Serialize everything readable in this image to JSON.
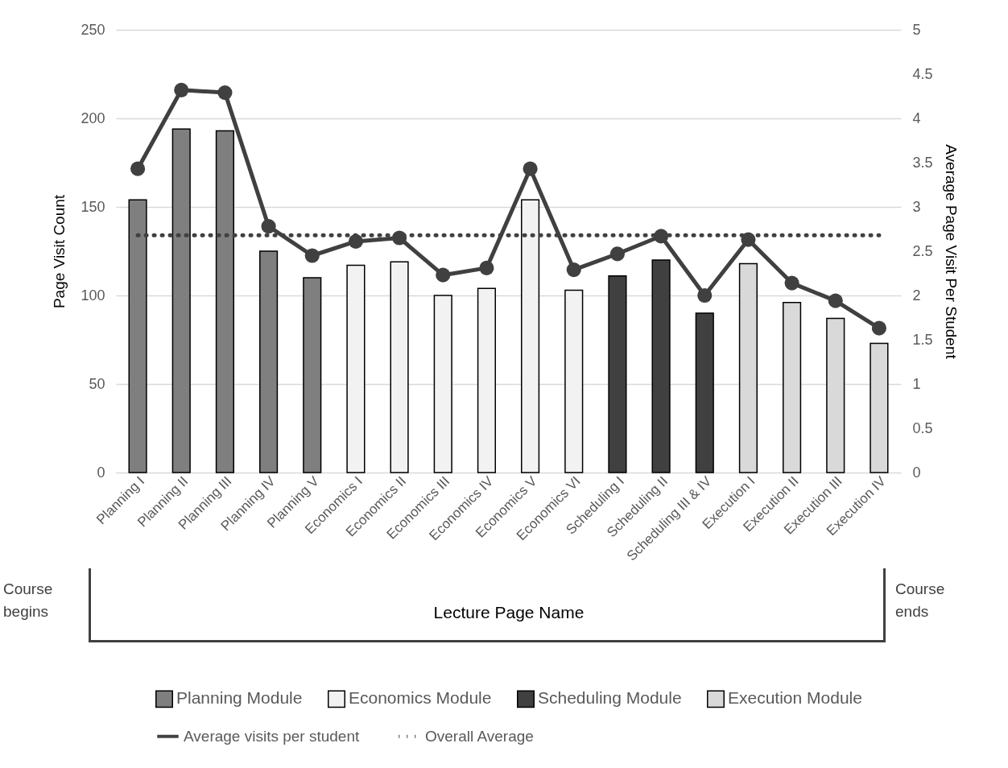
{
  "chart_data": {
    "type": "bar",
    "stacked": true,
    "categories": [
      "Planning I",
      "Planning II",
      "Planning III",
      "Planning IV",
      "Planning V",
      "Economics I",
      "Economics II",
      "Economics III",
      "Economics IV",
      "Economics V",
      "Economics VI",
      "Scheduling I",
      "Scheduling II",
      "Scheduling III & IV",
      "Execution I",
      "Execution II",
      "Execution III",
      "Execution IV"
    ],
    "series": [
      {
        "name": "Planning Module",
        "color": "#7f7f7f",
        "values": [
          154,
          194,
          193,
          125,
          110,
          null,
          null,
          null,
          null,
          null,
          null,
          null,
          null,
          null,
          null,
          null,
          null,
          null
        ]
      },
      {
        "name": "Economics Module",
        "color": "#f2f2f2",
        "values": [
          null,
          null,
          null,
          null,
          null,
          117,
          119,
          100,
          104,
          154,
          103,
          null,
          null,
          null,
          null,
          null,
          null,
          null
        ]
      },
      {
        "name": "Scheduling Module",
        "color": "#404040",
        "values": [
          null,
          null,
          null,
          null,
          null,
          null,
          null,
          null,
          null,
          null,
          null,
          111,
          120,
          90,
          null,
          null,
          null,
          null
        ]
      },
      {
        "name": "Execution Module",
        "color": "#d9d9d9",
        "values": [
          null,
          null,
          null,
          null,
          null,
          null,
          null,
          null,
          null,
          null,
          null,
          null,
          null,
          null,
          118,
          96,
          87,
          73
        ]
      },
      {
        "name": "Average visits per student",
        "type": "line",
        "axis": "y2",
        "color": "#404040",
        "marker": "circle",
        "line_style": "solid",
        "values": [
          3.43,
          4.32,
          4.29,
          2.78,
          2.45,
          2.61,
          2.65,
          2.23,
          2.31,
          3.43,
          2.29,
          2.47,
          2.67,
          2.0,
          2.63,
          2.14,
          1.94,
          1.63
        ]
      },
      {
        "name": "Overall Average",
        "type": "line",
        "axis": "y2",
        "color": "#404040",
        "marker": "none",
        "line_style": "dotted",
        "values": [
          2.68,
          2.68,
          2.68,
          2.68,
          2.68,
          2.68,
          2.68,
          2.68,
          2.68,
          2.68,
          2.68,
          2.68,
          2.68,
          2.68,
          2.68,
          2.68,
          2.68,
          2.68
        ]
      }
    ],
    "xlabel": "Lecture Page Name",
    "ylabel": "Page Visit Count",
    "y2label": "Average Page Visit Per Student",
    "ylim": [
      0,
      250
    ],
    "yticks": [
      0,
      50,
      100,
      150,
      200,
      250
    ],
    "y2lim": [
      0,
      5
    ],
    "y2ticks": [
      0,
      0.5,
      1,
      1.5,
      2,
      2.5,
      3,
      3.5,
      4,
      4.5,
      5
    ],
    "grid": "y",
    "legend": "bottom",
    "annotations": [
      "Course begins",
      "Course ends"
    ]
  }
}
